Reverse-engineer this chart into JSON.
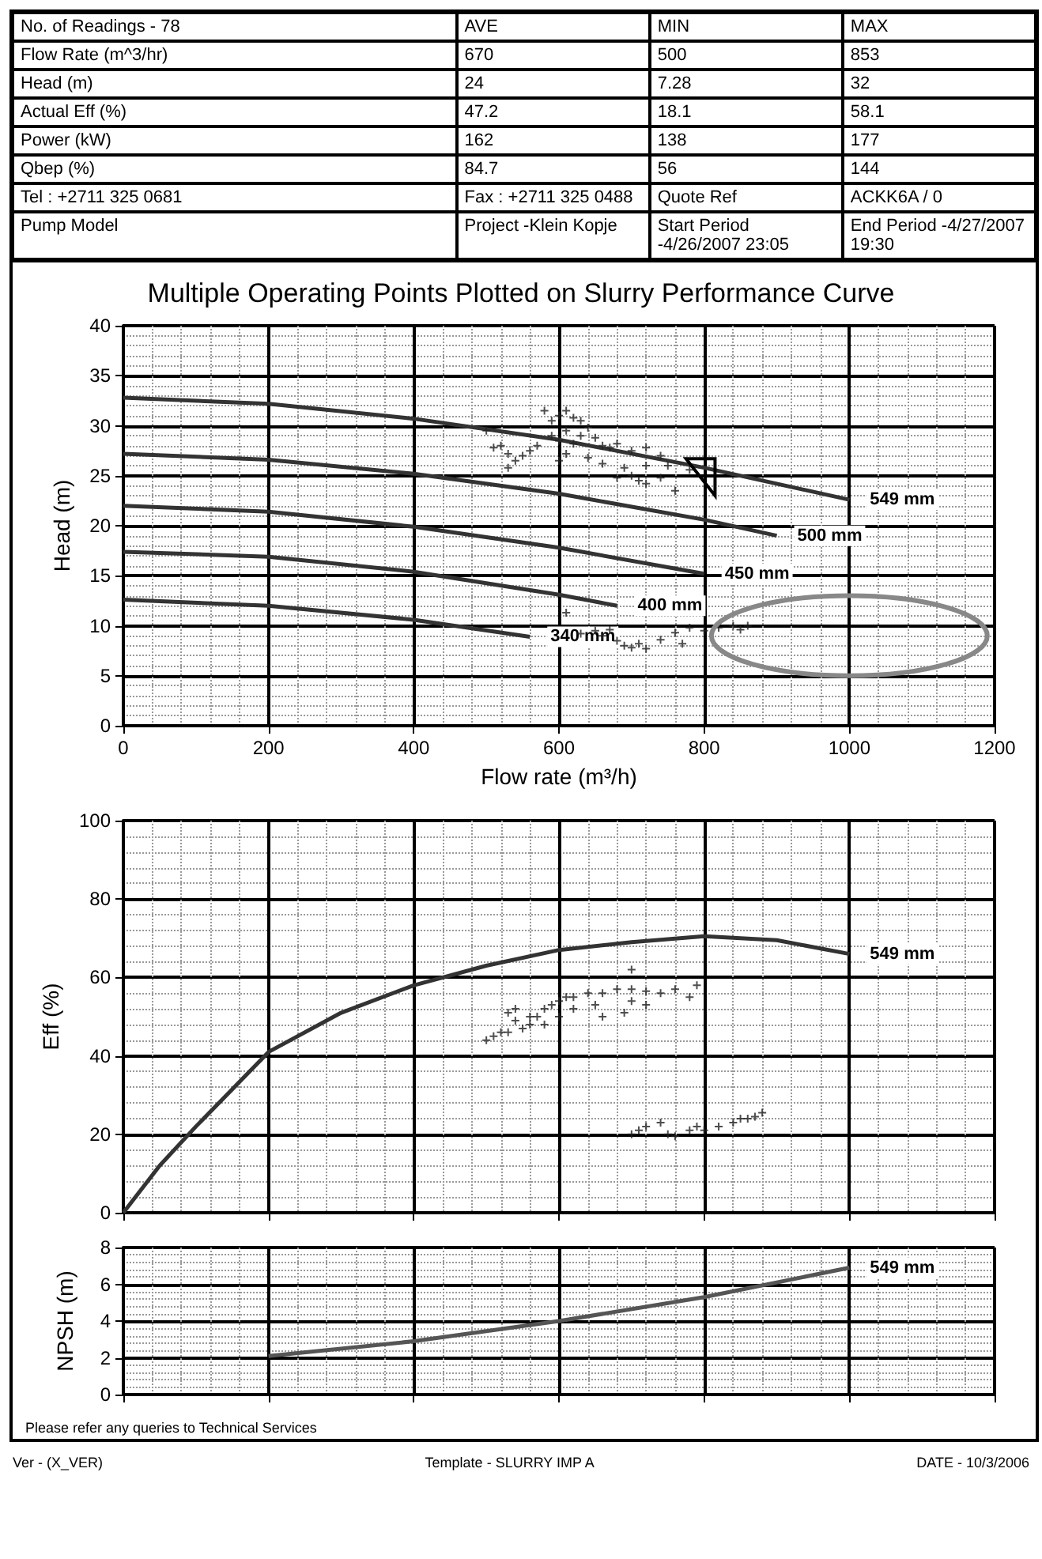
{
  "chart_data": [
    {
      "type": "other",
      "annotations": [
        "No. of Readings - 78",
        "AVE",
        "MIN",
        "MAX",
        "Flow Rate  (m^3/hr)",
        "670",
        "500",
        "853",
        "Head  (m)",
        "24",
        "7.28",
        "32",
        "Actual Eff (%)",
        "47.2",
        "18.1",
        "58.1",
        "Power (kW)",
        "162",
        "138",
        "177",
        "Qbep (%)",
        "84.7",
        "56",
        "144",
        "Tel : +2711 325 0681",
        "Fax : +2711 325 0488",
        "Quote Ref",
        "ACKK6A / 0",
        "Pump Model",
        "Project -Klein Kopje",
        "Start Period -4/26/2007 23:05",
        "End Period -4/27/2007 19:30"
      ]
    },
    {
      "type": "line",
      "title": "Multiple Operating Points Plotted on Slurry Performance Curve",
      "xlabel": "Flow rate (m³/h)",
      "ylabel": "Head (m)",
      "xlim": [
        0,
        1200
      ],
      "xticks": [
        0,
        200,
        400,
        600,
        800,
        1000,
        1200
      ],
      "ylim": [
        0,
        40
      ],
      "yticks": [
        0,
        5,
        10,
        15,
        20,
        25,
        30,
        35,
        40
      ],
      "grid": true,
      "legend": false,
      "series": [
        {
          "name": "549 mm",
          "color": "#333333",
          "x": [
            0,
            200,
            400,
            600,
            800,
            1000
          ],
          "values": [
            32.8,
            32.2,
            30.7,
            28.6,
            25.8,
            22.6
          ]
        },
        {
          "name": "500 mm",
          "color": "#333333",
          "x": [
            0,
            200,
            400,
            600,
            800,
            900
          ],
          "values": [
            27.2,
            26.6,
            25.2,
            23.2,
            20.6,
            19
          ]
        },
        {
          "name": "450 mm",
          "color": "#333333",
          "x": [
            0,
            200,
            400,
            600,
            800
          ],
          "values": [
            22,
            21.4,
            19.9,
            17.8,
            15.2
          ]
        },
        {
          "name": "400 mm",
          "color": "#333333",
          "x": [
            0,
            200,
            400,
            600,
            680
          ],
          "values": [
            17.4,
            16.9,
            15.4,
            13.1,
            12
          ]
        },
        {
          "name": "340 mm",
          "color": "#333333",
          "x": [
            0,
            200,
            400,
            560
          ],
          "values": [
            12.6,
            12,
            10.6,
            8.9
          ]
        },
        {
          "type": "scatter",
          "marker": "cross",
          "color": "#222222",
          "x": [
            570,
            580,
            590,
            600,
            610,
            620,
            630,
            640,
            590,
            600,
            610,
            620,
            630,
            650,
            660,
            670,
            680,
            700,
            720,
            740,
            560,
            550,
            540,
            520,
            530,
            600,
            610,
            640,
            660,
            690,
            700,
            710,
            720,
            740,
            760,
            680,
            720,
            750,
            780,
            500,
            510,
            530,
            630,
            650,
            660,
            670,
            680,
            690,
            700,
            710,
            720,
            740,
            760,
            770,
            780,
            800,
            820,
            840,
            850,
            860,
            610
          ],
          "values": [
            28,
            31.5,
            30.5,
            31,
            31.5,
            30.8,
            30.5,
            29.8,
            29,
            28.5,
            29.5,
            28.2,
            29,
            28.8,
            28,
            27.8,
            28.2,
            27.5,
            27.8,
            27,
            27.5,
            27,
            26.5,
            28,
            27.2,
            26.5,
            27.2,
            26.8,
            26.2,
            25.8,
            25,
            24.5,
            24.2,
            24.8,
            23.5,
            24.8,
            26,
            26,
            25.6,
            29.5,
            27.8,
            25.8,
            9.2,
            9.5,
            9,
            9.6,
            8.5,
            8,
            7.8,
            8.2,
            7.7,
            8.6,
            9.3,
            8.2,
            9.8,
            9.5,
            9.8,
            10,
            9.6,
            10,
            11.3
          ]
        }
      ]
    },
    {
      "type": "line",
      "ylabel": "Eff (%)",
      "xlim": [
        0,
        1200
      ],
      "xticks": [
        0,
        200,
        400,
        600,
        800,
        1000,
        1200
      ],
      "ylim": [
        0,
        100
      ],
      "yticks": [
        0,
        20,
        40,
        60,
        80,
        100
      ],
      "grid": true,
      "legend": false,
      "tick_labels": "y",
      "series": [
        {
          "name": "549 mm",
          "color": "#333333",
          "x": [
            0,
            50,
            100,
            200,
            300,
            400,
            500,
            600,
            700,
            800,
            900,
            1000
          ],
          "values": [
            0,
            12,
            22,
            41,
            51,
            58,
            63,
            67,
            69,
            70.5,
            69.5,
            66
          ]
        },
        {
          "type": "scatter",
          "marker": "cross",
          "color": "#222222",
          "x": [
            500,
            510,
            520,
            530,
            540,
            550,
            560,
            570,
            580,
            590,
            600,
            610,
            620,
            640,
            660,
            680,
            700,
            720,
            740,
            760,
            780,
            790,
            700,
            620,
            660,
            690,
            720,
            600,
            580,
            560,
            540,
            530,
            650,
            700,
            700,
            710,
            720,
            740,
            750,
            760,
            780,
            790,
            800,
            820,
            840,
            850,
            860,
            880,
            870
          ],
          "values": [
            44,
            45,
            46,
            46,
            49,
            47,
            48,
            50,
            52,
            53,
            54,
            55,
            55,
            56,
            56,
            57,
            57,
            56.5,
            56,
            57,
            55,
            58,
            62,
            52,
            50,
            51,
            53,
            50,
            48,
            50,
            52,
            51,
            53,
            54,
            20,
            21,
            22,
            23,
            20,
            19.5,
            21,
            22,
            21,
            22,
            23,
            24,
            24,
            25.5,
            24.5
          ]
        }
      ]
    },
    {
      "type": "line",
      "ylabel": "NPSH (m)",
      "xlim": [
        0,
        1200
      ],
      "xticks": [
        0,
        200,
        400,
        600,
        800,
        1000,
        1200
      ],
      "ylim": [
        0,
        8
      ],
      "yticks": [
        0,
        2,
        4,
        6,
        8
      ],
      "grid": true,
      "legend": false,
      "tick_labels": "y",
      "annotations": [
        "Please refer any queries to Technical Services",
        "Ver - (X_VER)",
        "Template - SLURRY IMP A",
        "DATE - 10/3/2006"
      ],
      "series": [
        {
          "name": "549 mm",
          "color": "#555555",
          "x": [
            200,
            400,
            600,
            800,
            1000
          ],
          "values": [
            2.1,
            2.9,
            4,
            5.3,
            6.9
          ]
        }
      ]
    }
  ]
}
